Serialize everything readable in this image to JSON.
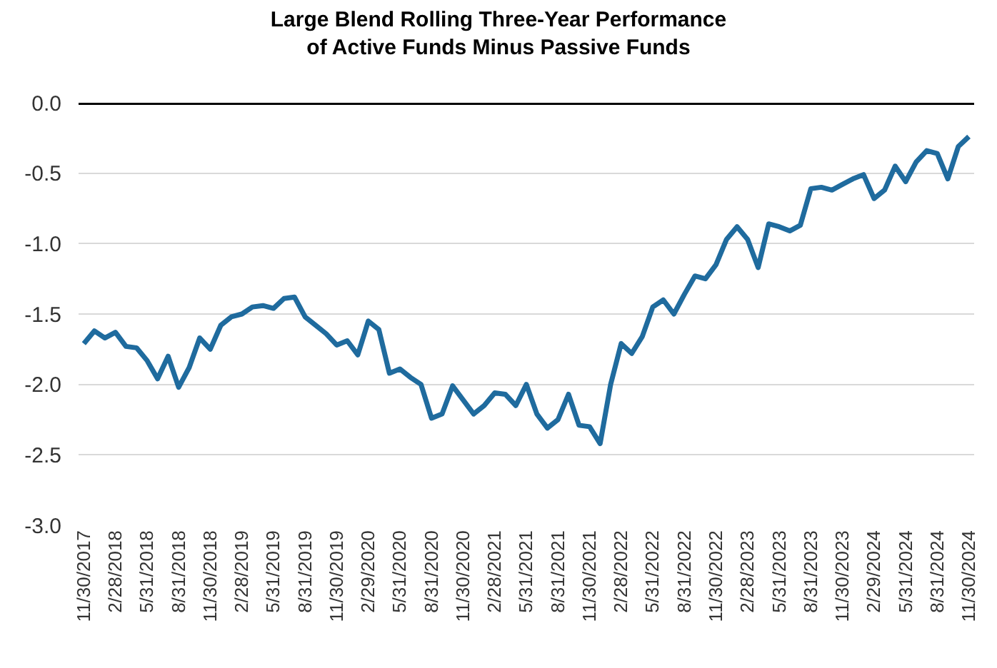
{
  "chart_data": {
    "type": "line",
    "title": "Large Blend Rolling Three-Year Performance\nof Active Funds Minus Passive Funds",
    "categories": [
      "11/30/2017",
      null,
      null,
      "2/28/2018",
      null,
      null,
      "5/31/2018",
      null,
      null,
      "8/31/2018",
      null,
      null,
      "11/30/2018",
      null,
      null,
      "2/28/2019",
      null,
      null,
      "5/31/2019",
      null,
      null,
      "8/31/2019",
      null,
      null,
      "11/30/2019",
      null,
      null,
      "2/29/2020",
      null,
      null,
      "5/31/2020",
      null,
      null,
      "8/31/2020",
      null,
      null,
      "11/30/2020",
      null,
      null,
      "2/28/2021",
      null,
      null,
      "5/31/2021",
      null,
      null,
      "8/31/2021",
      null,
      null,
      "11/30/2021",
      null,
      null,
      "2/28/2022",
      null,
      null,
      "5/31/2022",
      null,
      null,
      "8/31/2022",
      null,
      null,
      "11/30/2022",
      null,
      null,
      "2/28/2023",
      null,
      null,
      "5/31/2023",
      null,
      null,
      "8/31/2023",
      null,
      null,
      "11/30/2023",
      null,
      null,
      "2/29/2024",
      null,
      null,
      "5/31/2024",
      null,
      null,
      "8/31/2024",
      null,
      null,
      "11/30/2024"
    ],
    "series": [
      {
        "color": "#1f6b9e",
        "values": [
          -1.71,
          -1.62,
          -1.67,
          -1.63,
          -1.73,
          -1.74,
          -1.83,
          -1.96,
          -1.8,
          -2.02,
          -1.88,
          -1.67,
          -1.75,
          -1.58,
          -1.52,
          -1.5,
          -1.45,
          -1.44,
          -1.46,
          -1.39,
          -1.38,
          -1.52,
          -1.58,
          -1.64,
          -1.72,
          -1.69,
          -1.79,
          -1.55,
          -1.61,
          -1.92,
          -1.89,
          -1.95,
          -2.0,
          -2.24,
          -2.21,
          -2.01,
          -2.11,
          -2.21,
          -2.15,
          -2.06,
          -2.07,
          -2.15,
          -2.0,
          -2.21,
          -2.31,
          -2.25,
          -2.07,
          -2.29,
          -2.3,
          -2.42,
          -2.0,
          -1.71,
          -1.78,
          -1.66,
          -1.45,
          -1.4,
          -1.5,
          -1.36,
          -1.23,
          -1.25,
          -1.15,
          -0.97,
          -0.88,
          -0.97,
          -1.17,
          -0.86,
          -0.88,
          -0.91,
          -0.87,
          -0.61,
          -0.6,
          -0.62,
          -0.58,
          -0.54,
          -0.51,
          -0.68,
          -0.62,
          -0.45,
          -0.56,
          -0.42,
          -0.34,
          -0.36,
          -0.54,
          -0.31,
          -0.24
        ]
      }
    ],
    "ylim": [
      -3,
      0
    ],
    "yticks": [
      {
        "value": 0,
        "label": "0.0"
      },
      {
        "value": -0.5,
        "label": "-0.5"
      },
      {
        "value": -1,
        "label": "-1.0"
      },
      {
        "value": -1.5,
        "label": "-1.5"
      },
      {
        "value": -2,
        "label": "-2.0"
      },
      {
        "value": -2.5,
        "label": "-2.5"
      },
      {
        "value": -3,
        "label": "-3.0"
      }
    ],
    "ref_lines": [
      {
        "axis": "y",
        "value": 0,
        "color": "#000000"
      }
    ],
    "grid": "y",
    "marker": "none",
    "line_style": "solid"
  }
}
